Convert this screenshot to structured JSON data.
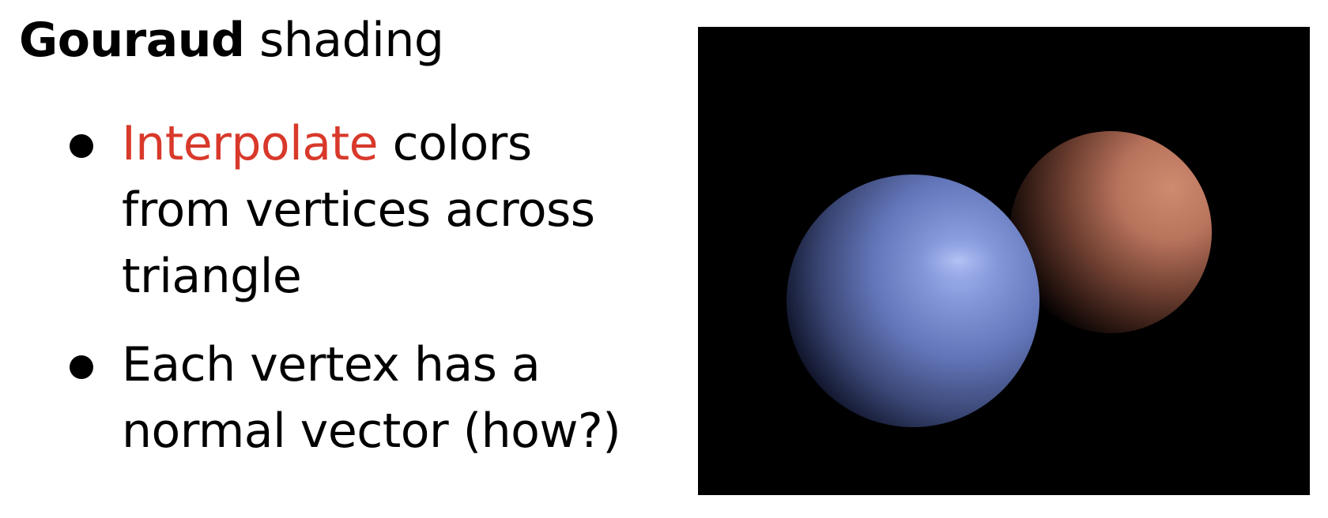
{
  "slide": {
    "title": {
      "bold": "Gouraud",
      "rest": " shading"
    },
    "bullets": [
      {
        "highlight": "Interpolate",
        "text": " colors from vertices across triangle"
      },
      {
        "text": "Each vertex has a normal vector (how?)"
      }
    ]
  },
  "colors": {
    "accent": "#d8392b",
    "background": "#ffffff",
    "image_background": "#000000",
    "blue_sphere": "#7285c8",
    "orange_sphere": "#c98468"
  }
}
